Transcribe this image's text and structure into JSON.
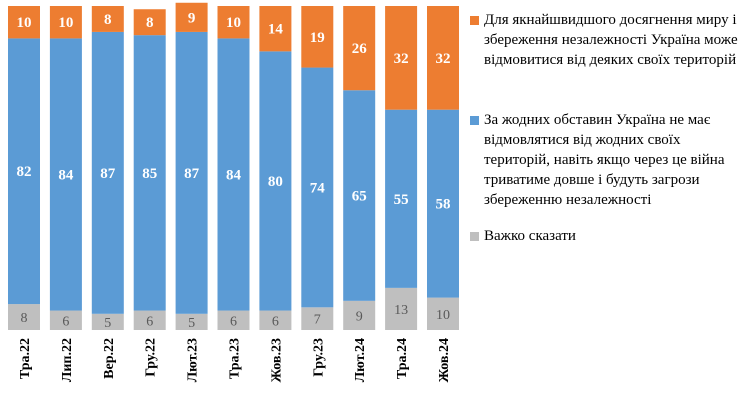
{
  "chart_data": {
    "type": "bar",
    "stacked": true,
    "categories": [
      "Тра.22",
      "Лип.22",
      "Вер.22",
      "Гру.22",
      "Лют.23",
      "Тра.23",
      "Жов.23",
      "Гру.23",
      "Лют.24",
      "Тра.24",
      "Жов.24"
    ],
    "series": [
      {
        "name": "Важко сказати",
        "color": "#bfbfbf",
        "label_color": "#595959",
        "values": [
          8,
          6,
          5,
          6,
          5,
          6,
          6,
          7,
          9,
          13,
          10
        ]
      },
      {
        "name": "За жодних обставин Україна не має відмовлятися від жодних своїх територій, навіть якщо через це війна триватиме довше і будуть загрози збереженню незалежності",
        "color": "#5b9bd5",
        "label_color": "#ffffff",
        "values": [
          82,
          84,
          87,
          85,
          87,
          84,
          80,
          74,
          65,
          55,
          58
        ]
      },
      {
        "name": "Для якнайшвидшого досягнення миру і збереження незалежності Україна може відмовитися від деяких своїх територій",
        "color": "#ed7d31",
        "label_color": "#ffffff",
        "values": [
          10,
          10,
          8,
          8,
          9,
          10,
          14,
          19,
          26,
          32,
          32
        ]
      }
    ],
    "legend_order": [
      2,
      1,
      0
    ],
    "ylim": [
      0,
      100
    ],
    "legend": "right",
    "grid": false,
    "axis_label_rotation": -90
  }
}
